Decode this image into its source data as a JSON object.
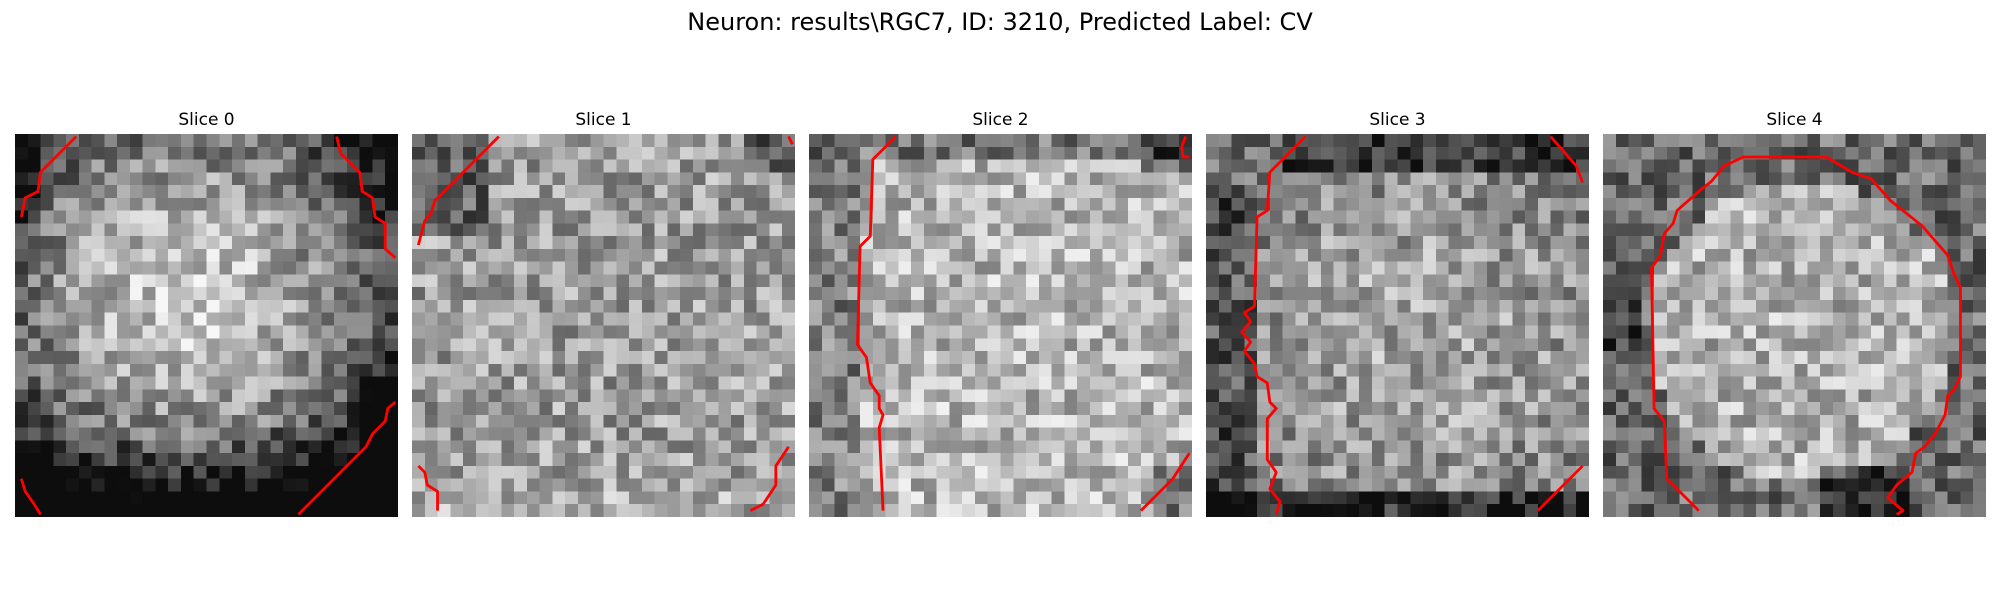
{
  "figure": {
    "title": "Neuron: results\\RGC7, ID: 3210, Predicted Label: CV"
  },
  "slices": [
    {
      "title": "Slice 0"
    },
    {
      "title": "Slice 1"
    },
    {
      "title": "Slice 2"
    },
    {
      "title": "Slice 3"
    },
    {
      "title": "Slice 4"
    }
  ],
  "colors": {
    "contour": "#ff0000",
    "background": "#ffffff"
  }
}
